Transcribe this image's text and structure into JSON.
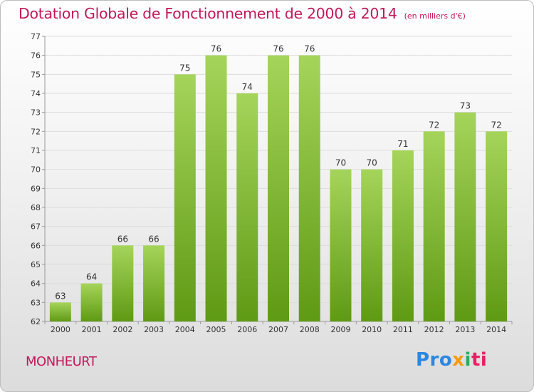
{
  "chart_data": {
    "type": "bar",
    "title": "Dotation Globale de Fonctionnement de 2000 à 2014",
    "subtitle": "(en milliers d'€)",
    "categories": [
      "2000",
      "2001",
      "2002",
      "2003",
      "2004",
      "2005",
      "2006",
      "2007",
      "2008",
      "2009",
      "2010",
      "2011",
      "2012",
      "2013",
      "2014"
    ],
    "values": [
      63,
      64,
      66,
      66,
      75,
      76,
      74,
      76,
      76,
      70,
      70,
      71,
      72,
      73,
      72
    ],
    "ylim": [
      62,
      77
    ],
    "yticks": [
      62,
      63,
      64,
      65,
      66,
      67,
      68,
      69,
      70,
      71,
      72,
      73,
      74,
      75,
      76,
      77
    ],
    "grid": true,
    "bar_color_top": "#a5d45a",
    "bar_color_bottom": "#5f9a14"
  },
  "commune": "MONHEURT",
  "logo": {
    "part1": "Pro",
    "part2": "x",
    "part3": "i",
    "part4": "ti"
  },
  "colors": {
    "title": "#c2185b",
    "grid": "#dddddd",
    "axis": "#999999"
  }
}
